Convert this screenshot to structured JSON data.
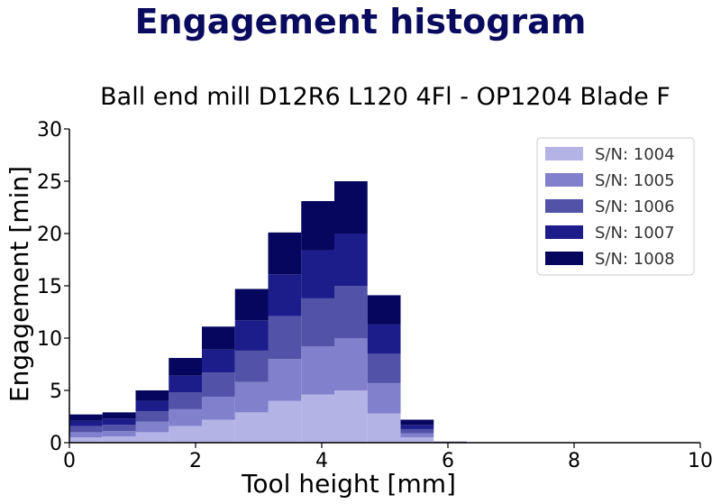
{
  "page_title": "Engagement histogram",
  "chart_data": {
    "type": "bar",
    "stacked": true,
    "title": "Ball end mill D12R6 L120 4Fl - OP1204 Blade F",
    "xlabel": "Tool height [mm]",
    "ylabel": "Engagement [min]",
    "xlim": [
      0,
      10
    ],
    "ylim": [
      0,
      30
    ],
    "xticks": [
      "0",
      "2",
      "4",
      "6",
      "8",
      "10"
    ],
    "yticks": [
      "0",
      "5",
      "10",
      "15",
      "20",
      "25",
      "30"
    ],
    "grid": false,
    "legend_position": "top-right",
    "bin_edges": [
      0,
      0.525,
      1.05,
      1.575,
      2.1,
      2.625,
      3.15,
      3.675,
      4.2,
      4.725,
      5.25,
      5.775,
      6.3,
      6.825,
      7.35,
      7.875,
      8.4,
      8.925,
      9.45,
      10
    ],
    "series": [
      {
        "name": "S/N: 1004",
        "color": "#b3b3e6",
        "values": [
          0.5,
          0.6,
          1.0,
          1.6,
          2.2,
          2.9,
          4.0,
          4.6,
          5.0,
          2.8,
          0.5,
          0.02,
          0,
          0,
          0,
          0,
          0,
          0,
          0
        ]
      },
      {
        "name": "S/N: 1005",
        "color": "#8080cc",
        "values": [
          0.5,
          0.5,
          1.0,
          1.6,
          2.2,
          2.9,
          4.0,
          4.6,
          5.0,
          2.9,
          0.4,
          0.02,
          0,
          0,
          0,
          0,
          0,
          0,
          0
        ]
      },
      {
        "name": "S/N: 1006",
        "color": "#5252a8",
        "values": [
          0.6,
          0.6,
          1.0,
          1.6,
          2.3,
          3.0,
          4.1,
          4.6,
          5.0,
          2.8,
          0.4,
          0.02,
          0,
          0,
          0,
          0,
          0,
          0,
          0
        ]
      },
      {
        "name": "S/N: 1007",
        "color": "#1c1c8a",
        "values": [
          0.5,
          0.6,
          1.0,
          1.6,
          2.2,
          2.9,
          4.0,
          4.6,
          5.0,
          2.8,
          0.4,
          0.02,
          0,
          0,
          0,
          0,
          0,
          0,
          0
        ]
      },
      {
        "name": "S/N: 1008",
        "color": "#06065e",
        "values": [
          0.6,
          0.6,
          1.0,
          1.7,
          2.2,
          3.0,
          4.0,
          4.7,
          5.0,
          2.8,
          0.5,
          0.02,
          0,
          0,
          0,
          0,
          0,
          0,
          0
        ]
      }
    ]
  }
}
